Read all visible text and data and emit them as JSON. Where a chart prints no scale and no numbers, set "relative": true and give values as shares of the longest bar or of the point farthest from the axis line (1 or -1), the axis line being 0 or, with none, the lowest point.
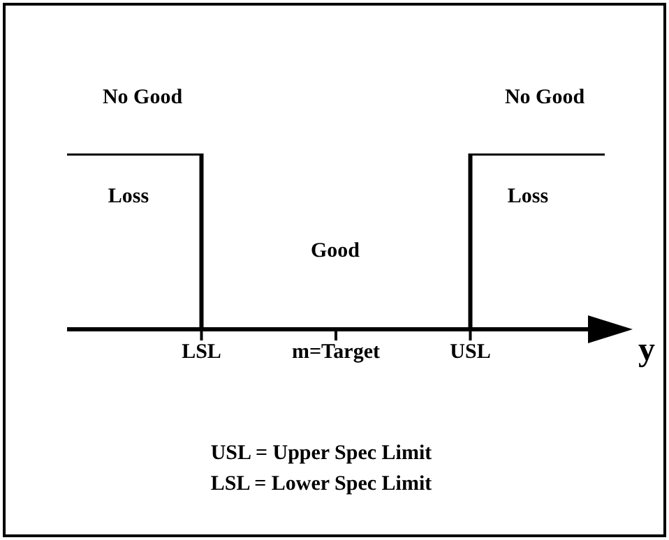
{
  "chart_data": {
    "type": "step",
    "relative": true,
    "categories": [
      null,
      "LSL",
      "m=Target",
      "USL",
      null
    ],
    "xlabel": "y",
    "color": "#000000",
    "values": [
      1,
      0,
      0,
      1,
      1
    ],
    "annotations": [
      "No Good",
      "No Good",
      "Loss",
      "Loss",
      "Good",
      "USL = Upper Spec Limit",
      "LSL = Lower Spec Limit"
    ],
    "grid": false,
    "legend": false
  }
}
